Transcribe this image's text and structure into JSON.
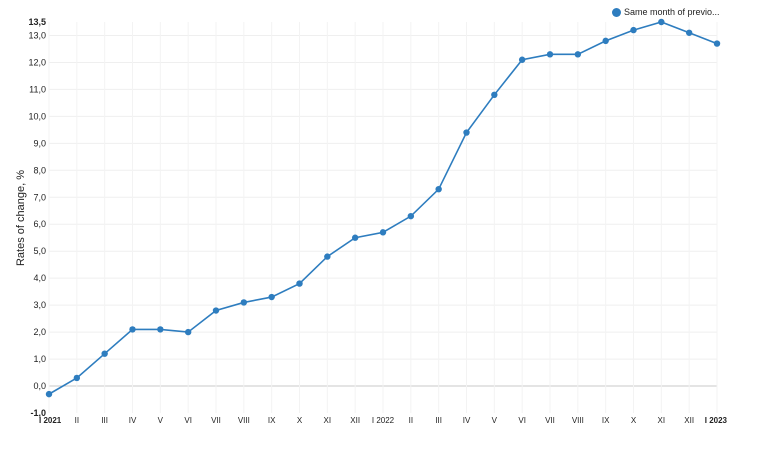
{
  "chart_data": {
    "type": "line",
    "ylabel": "Rates of change, %",
    "categories": [
      "I 2021",
      "II",
      "III",
      "IV",
      "V",
      "VI",
      "VII",
      "VIII",
      "IX",
      "X",
      "XI",
      "XII",
      "I 2022",
      "II",
      "III",
      "IV",
      "V",
      "VI",
      "VII",
      "VIII",
      "IX",
      "X",
      "XI",
      "XII",
      "I 2023"
    ],
    "bold_categories": [
      "I 2021",
      "I 2023"
    ],
    "series": [
      {
        "name": "Same month of previo...",
        "color": "#2e7dbf",
        "values": [
          -0.3,
          0.3,
          1.2,
          2.1,
          2.1,
          2.0,
          2.8,
          3.1,
          3.3,
          3.8,
          4.8,
          5.5,
          5.7,
          6.3,
          7.3,
          9.4,
          10.8,
          12.1,
          12.3,
          12.3,
          12.8,
          13.2,
          13.5,
          13.1,
          12.7
        ]
      }
    ],
    "ylim": [
      -1.0,
      13.5
    ],
    "yticks": [
      "-1,0",
      "0,0",
      "1,0",
      "2,0",
      "3,0",
      "4,0",
      "5,0",
      "6,0",
      "7,0",
      "8,0",
      "9,0",
      "10,0",
      "11,0",
      "12,0",
      "13,0",
      "13,5"
    ],
    "ytick_values": [
      -1.0,
      0,
      1,
      2,
      3,
      4,
      5,
      6,
      7,
      8,
      9,
      10,
      11,
      12,
      13,
      13.5
    ],
    "grid": true,
    "legend_position": "top-right"
  }
}
